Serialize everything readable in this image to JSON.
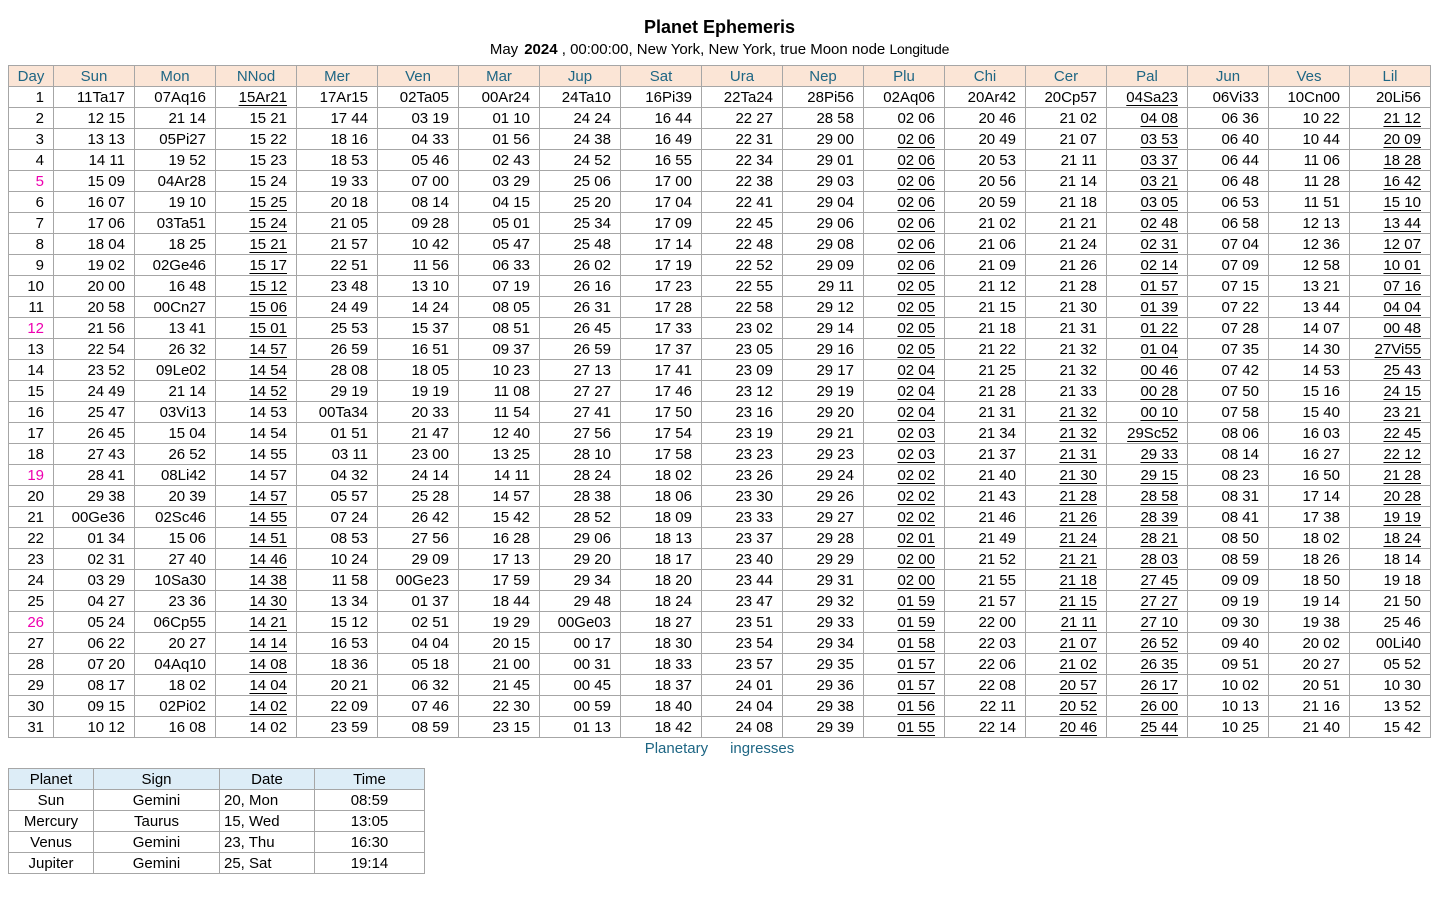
{
  "title": "Planet Ephemeris",
  "subtitle": {
    "month": "May",
    "year": "2024",
    "details": ", 00:00:00, New York, New York, true Moon node",
    "measure": "Longitude"
  },
  "colors": {
    "header_bg": "#fbe5d6",
    "header_text": "#1e6684",
    "sunday_row_bg": "#fcdff0",
    "sunday_day_text": "#ee00b0",
    "grid": "#a6a6a6",
    "ingress_header_bg": "#ddedf7",
    "caption_text": "#1e6684"
  },
  "ephemeris": {
    "retrograde_marker": "* suffix = value shown underlined (retrograde)",
    "columns": [
      "Day",
      "Sun",
      "Mon",
      "NNod",
      "Mer",
      "Ven",
      "Mar",
      "Jup",
      "Sat",
      "Ura",
      "Nep",
      "Plu",
      "Chi",
      "Cer",
      "Pal",
      "Jun",
      "Ves",
      "Lil"
    ],
    "sunday_days": [
      5,
      12,
      19,
      26
    ],
    "rows": [
      {
        "day": 1,
        "cells": [
          "11Ta17",
          "07Aq16",
          "15Ar21*",
          "17Ar15",
          "02Ta05",
          "00Ar24",
          "24Ta10",
          "16Pi39",
          "22Ta24",
          "28Pi56",
          "02Aq06",
          "20Ar42",
          "20Cp57",
          "04Sa23*",
          "06Vi33",
          "10Cn00",
          "20Li56"
        ]
      },
      {
        "day": 2,
        "cells": [
          "12 15",
          "21 14",
          "15 21",
          "17 44",
          "03 19",
          "01 10",
          "24 24",
          "16 44",
          "22 27",
          "28 58",
          "02 06",
          "20 46",
          "21 02",
          "04 08*",
          "06 36",
          "10 22",
          "21 12*"
        ]
      },
      {
        "day": 3,
        "cells": [
          "13 13",
          "05Pi27",
          "15 22",
          "18 16",
          "04 33",
          "01 56",
          "24 38",
          "16 49",
          "22 31",
          "29 00",
          "02 06*",
          "20 49",
          "21 07",
          "03 53*",
          "06 40",
          "10 44",
          "20 09*"
        ]
      },
      {
        "day": 4,
        "cells": [
          "14 11",
          "19 52",
          "15 23",
          "18 53",
          "05 46",
          "02 43",
          "24 52",
          "16 55",
          "22 34",
          "29 01",
          "02 06*",
          "20 53",
          "21 11",
          "03 37*",
          "06 44",
          "11 06",
          "18 28*"
        ]
      },
      {
        "day": 5,
        "cells": [
          "15 09",
          "04Ar28",
          "15 24",
          "19 33",
          "07 00",
          "03 29",
          "25 06",
          "17 00",
          "22 38",
          "29 03",
          "02 06*",
          "20 56",
          "21 14",
          "03 21*",
          "06 48",
          "11 28",
          "16 42*"
        ]
      },
      {
        "day": 6,
        "cells": [
          "16 07",
          "19 10",
          "15 25*",
          "20 18",
          "08 14",
          "04 15",
          "25 20",
          "17 04",
          "22 41",
          "29 04",
          "02 06*",
          "20 59",
          "21 18",
          "03 05*",
          "06 53",
          "11 51",
          "15 10*"
        ]
      },
      {
        "day": 7,
        "cells": [
          "17 06",
          "03Ta51",
          "15 24*",
          "21 05",
          "09 28",
          "05 01",
          "25 34",
          "17 09",
          "22 45",
          "29 06",
          "02 06*",
          "21 02",
          "21 21",
          "02 48*",
          "06 58",
          "12 13",
          "13 44*"
        ]
      },
      {
        "day": 8,
        "cells": [
          "18 04",
          "18 25",
          "15 21*",
          "21 57",
          "10 42",
          "05 47",
          "25 48",
          "17 14",
          "22 48",
          "29 08",
          "02 06*",
          "21 06",
          "21 24",
          "02 31*",
          "07 04",
          "12 36",
          "12 07*"
        ]
      },
      {
        "day": 9,
        "cells": [
          "19 02",
          "02Ge46",
          "15 17*",
          "22 51",
          "11 56",
          "06 33",
          "26 02",
          "17 19",
          "22 52",
          "29 09",
          "02 06*",
          "21 09",
          "21 26",
          "02 14*",
          "07 09",
          "12 58",
          "10 01*"
        ]
      },
      {
        "day": 10,
        "cells": [
          "20 00",
          "16 48",
          "15 12*",
          "23 48",
          "13 10",
          "07 19",
          "26 16",
          "17 23",
          "22 55",
          "29 11",
          "02 05*",
          "21 12",
          "21 28",
          "01 57*",
          "07 15",
          "13 21",
          "07 16*"
        ]
      },
      {
        "day": 11,
        "cells": [
          "20 58",
          "00Cn27",
          "15 06*",
          "24 49",
          "14 24",
          "08 05",
          "26 31",
          "17 28",
          "22 58",
          "29 12",
          "02 05*",
          "21 15",
          "21 30",
          "01 39*",
          "07 22",
          "13 44",
          "04 04*"
        ]
      },
      {
        "day": 12,
        "cells": [
          "21 56",
          "13 41",
          "15 01*",
          "25 53",
          "15 37",
          "08 51",
          "26 45",
          "17 33",
          "23 02",
          "29 14",
          "02 05*",
          "21 18",
          "21 31",
          "01 22*",
          "07 28",
          "14 07",
          "00 48*"
        ]
      },
      {
        "day": 13,
        "cells": [
          "22 54",
          "26 32",
          "14 57*",
          "26 59",
          "16 51",
          "09 37",
          "26 59",
          "17 37",
          "23 05",
          "29 16",
          "02 05*",
          "21 22",
          "21 32",
          "01 04*",
          "07 35",
          "14 30",
          "27Vi55*"
        ]
      },
      {
        "day": 14,
        "cells": [
          "23 52",
          "09Le02",
          "14 54*",
          "28 08",
          "18 05",
          "10 23",
          "27 13",
          "17 41",
          "23 09",
          "29 17",
          "02 04*",
          "21 25",
          "21 32",
          "00 46*",
          "07 42",
          "14 53",
          "25 43*"
        ]
      },
      {
        "day": 15,
        "cells": [
          "24 49",
          "21 14",
          "14 52*",
          "29 19",
          "19 19",
          "11 08",
          "27 27",
          "17 46",
          "23 12",
          "29 19",
          "02 04*",
          "21 28",
          "21 33",
          "00 28*",
          "07 50",
          "15 16",
          "24 15*"
        ]
      },
      {
        "day": 16,
        "cells": [
          "25 47",
          "03Vi13",
          "14 53",
          "00Ta34",
          "20 33",
          "11 54",
          "27 41",
          "17 50",
          "23 16",
          "29 20",
          "02 04*",
          "21 31",
          "21 32*",
          "00 10*",
          "07 58",
          "15 40",
          "23 21*"
        ]
      },
      {
        "day": 17,
        "cells": [
          "26 45",
          "15 04",
          "14 54",
          "01 51",
          "21 47",
          "12 40",
          "27 56",
          "17 54",
          "23 19",
          "29 21",
          "02 03*",
          "21 34",
          "21 32*",
          "29Sc52*",
          "08 06",
          "16 03",
          "22 45*"
        ]
      },
      {
        "day": 18,
        "cells": [
          "27 43",
          "26 52",
          "14 55",
          "03 11",
          "23 00",
          "13 25",
          "28 10",
          "17 58",
          "23 23",
          "29 23",
          "02 03*",
          "21 37",
          "21 31*",
          "29 33*",
          "08 14",
          "16 27",
          "22 12*"
        ]
      },
      {
        "day": 19,
        "cells": [
          "28 41",
          "08Li42",
          "14 57",
          "04 32",
          "24 14",
          "14 11",
          "28 24",
          "18 02",
          "23 26",
          "29 24",
          "02 02*",
          "21 40",
          "21 30*",
          "29 15*",
          "08 23",
          "16 50",
          "21 28*"
        ]
      },
      {
        "day": 20,
        "cells": [
          "29 38",
          "20 39",
          "14 57*",
          "05 57",
          "25 28",
          "14 57",
          "28 38",
          "18 06",
          "23 30",
          "29 26",
          "02 02*",
          "21 43",
          "21 28*",
          "28 58*",
          "08 31",
          "17 14",
          "20 28*"
        ]
      },
      {
        "day": 21,
        "cells": [
          "00Ge36",
          "02Sc46",
          "14 55*",
          "07 24",
          "26 42",
          "15 42",
          "28 52",
          "18 09",
          "23 33",
          "29 27",
          "02 02*",
          "21 46",
          "21 26*",
          "28 39*",
          "08 41",
          "17 38",
          "19 19*"
        ]
      },
      {
        "day": 22,
        "cells": [
          "01 34",
          "15 06",
          "14 51*",
          "08 53",
          "27 56",
          "16 28",
          "29 06",
          "18 13",
          "23 37",
          "29 28",
          "02 01*",
          "21 49",
          "21 24*",
          "28 21*",
          "08 50",
          "18 02",
          "18 24*"
        ]
      },
      {
        "day": 23,
        "cells": [
          "02 31",
          "27 40",
          "14 46*",
          "10 24",
          "29 09",
          "17 13",
          "29 20",
          "18 17",
          "23 40",
          "29 29",
          "02 00*",
          "21 52",
          "21 21*",
          "28 03*",
          "08 59",
          "18 26",
          "18 14"
        ]
      },
      {
        "day": 24,
        "cells": [
          "03 29",
          "10Sa30",
          "14 38*",
          "11 58",
          "00Ge23",
          "17 59",
          "29 34",
          "18 20",
          "23 44",
          "29 31",
          "02 00*",
          "21 55",
          "21 18*",
          "27 45*",
          "09 09",
          "18 50",
          "19 18"
        ]
      },
      {
        "day": 25,
        "cells": [
          "04 27",
          "23 36",
          "14 30*",
          "13 34",
          "01 37",
          "18 44",
          "29 48",
          "18 24",
          "23 47",
          "29 32",
          "01 59*",
          "21 57",
          "21 15*",
          "27 27*",
          "09 19",
          "19 14",
          "21 50"
        ]
      },
      {
        "day": 26,
        "cells": [
          "05 24",
          "06Cp55",
          "14 21*",
          "15 12",
          "02 51",
          "19 29",
          "00Ge03",
          "18 27",
          "23 51",
          "29 33",
          "01 59*",
          "22 00",
          "21 11*",
          "27 10*",
          "09 30",
          "19 38",
          "25 46"
        ]
      },
      {
        "day": 27,
        "cells": [
          "06 22",
          "20 27",
          "14 14*",
          "16 53",
          "04 04",
          "20 15",
          "00 17",
          "18 30",
          "23 54",
          "29 34",
          "01 58*",
          "22 03",
          "21 07*",
          "26 52*",
          "09 40",
          "20 02",
          "00Li40"
        ]
      },
      {
        "day": 28,
        "cells": [
          "07 20",
          "04Aq10",
          "14 08*",
          "18 36",
          "05 18",
          "21 00",
          "00 31",
          "18 33",
          "23 57",
          "29 35",
          "01 57*",
          "22 06",
          "21 02*",
          "26 35*",
          "09 51",
          "20 27",
          "05 52"
        ]
      },
      {
        "day": 29,
        "cells": [
          "08 17",
          "18 02",
          "14 04*",
          "20 21",
          "06 32",
          "21 45",
          "00 45",
          "18 37",
          "24 01",
          "29 36",
          "01 57*",
          "22 08",
          "20 57*",
          "26 17*",
          "10 02",
          "20 51",
          "10 30"
        ]
      },
      {
        "day": 30,
        "cells": [
          "09 15",
          "02Pi02",
          "14 02*",
          "22 09",
          "07 46",
          "22 30",
          "00 59",
          "18 40",
          "24 04",
          "29 38",
          "01 56*",
          "22 11",
          "20 52*",
          "26 00*",
          "10 13",
          "21 16",
          "13 52"
        ]
      },
      {
        "day": 31,
        "cells": [
          "10 12",
          "16 08",
          "14 02",
          "23 59",
          "08 59",
          "23 15",
          "01 13",
          "18 42",
          "24 08",
          "29 39",
          "01 55*",
          "22 14",
          "20 46*",
          "25 44*",
          "10 25",
          "21 40",
          "15 42"
        ]
      }
    ]
  },
  "ingresses": {
    "heading_words": [
      "Planetary",
      "ingresses"
    ],
    "columns": [
      "Planet",
      "Sign",
      "Date",
      "Time"
    ],
    "rows": [
      [
        "Sun",
        "Gemini",
        "20, Mon",
        "08:59"
      ],
      [
        "Mercury",
        "Taurus",
        "15, Wed",
        "13:05"
      ],
      [
        "Venus",
        "Gemini",
        "23, Thu",
        "16:30"
      ],
      [
        "Jupiter",
        "Gemini",
        "25, Sat",
        "19:14"
      ]
    ]
  }
}
